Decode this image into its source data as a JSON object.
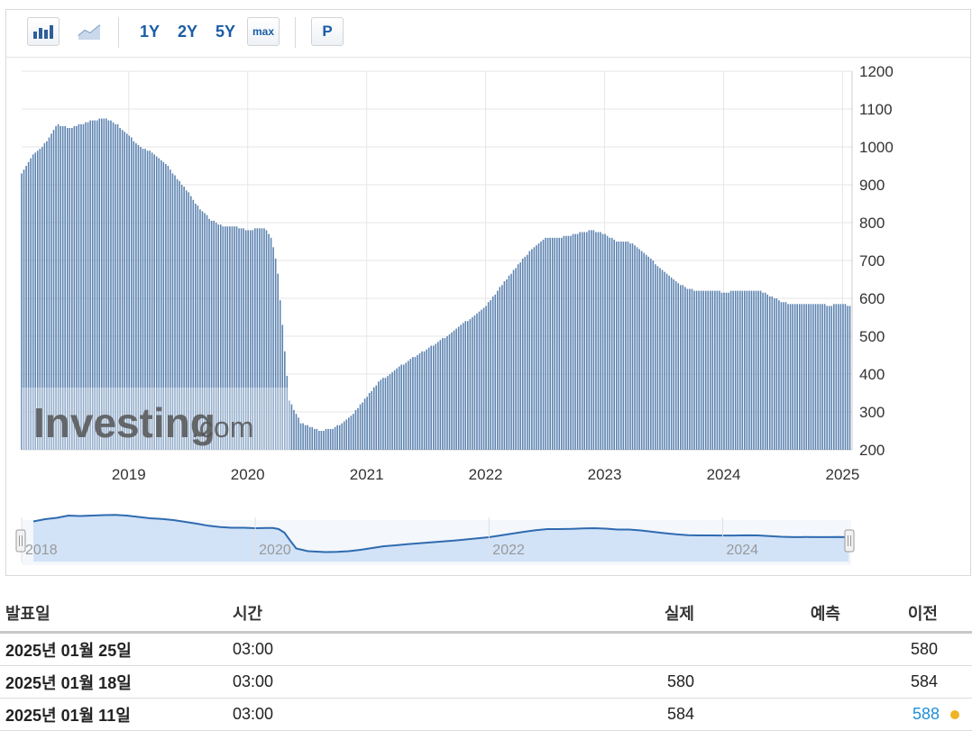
{
  "toolbar": {
    "bar_chart_icon": "bar-chart-icon",
    "line_chart_icon": "line-chart-icon",
    "ranges": [
      "1Y",
      "2Y",
      "5Y"
    ],
    "max_label": "max",
    "p_label": "P"
  },
  "watermark": {
    "brand": "Investing",
    "suffix": ".com"
  },
  "chart_data": {
    "type": "bar",
    "x_ticks": [
      "2019",
      "2020",
      "2021",
      "2022",
      "2023",
      "2024",
      "2025"
    ],
    "y_ticks": [
      "200",
      "300",
      "400",
      "500",
      "600",
      "700",
      "800",
      "900",
      "1000",
      "1100",
      "1200"
    ],
    "ylim": [
      200,
      1200
    ],
    "xlim": [
      2018.1,
      2025.08
    ],
    "grid": true,
    "color": "#5b82b0",
    "points": [
      [
        2018.1,
        930
      ],
      [
        2018.2,
        980
      ],
      [
        2018.3,
        1010
      ],
      [
        2018.4,
        1060
      ],
      [
        2018.5,
        1050
      ],
      [
        2018.6,
        1060
      ],
      [
        2018.7,
        1070
      ],
      [
        2018.8,
        1075
      ],
      [
        2018.9,
        1060
      ],
      [
        2019.0,
        1030
      ],
      [
        2019.1,
        1000
      ],
      [
        2019.2,
        985
      ],
      [
        2019.3,
        960
      ],
      [
        2019.4,
        920
      ],
      [
        2019.5,
        880
      ],
      [
        2019.6,
        835
      ],
      [
        2019.7,
        805
      ],
      [
        2019.8,
        790
      ],
      [
        2019.9,
        790
      ],
      [
        2020.0,
        780
      ],
      [
        2020.1,
        785
      ],
      [
        2020.15,
        785
      ],
      [
        2020.2,
        760
      ],
      [
        2020.25,
        680
      ],
      [
        2020.3,
        500
      ],
      [
        2020.35,
        330
      ],
      [
        2020.45,
        270
      ],
      [
        2020.6,
        250
      ],
      [
        2020.7,
        255
      ],
      [
        2020.8,
        270
      ],
      [
        2020.9,
        300
      ],
      [
        2021.0,
        340
      ],
      [
        2021.1,
        380
      ],
      [
        2021.2,
        400
      ],
      [
        2021.3,
        425
      ],
      [
        2021.4,
        445
      ],
      [
        2021.5,
        465
      ],
      [
        2021.6,
        485
      ],
      [
        2021.7,
        505
      ],
      [
        2021.8,
        530
      ],
      [
        2021.9,
        555
      ],
      [
        2022.0,
        580
      ],
      [
        2022.1,
        620
      ],
      [
        2022.2,
        660
      ],
      [
        2022.3,
        700
      ],
      [
        2022.4,
        735
      ],
      [
        2022.5,
        760
      ],
      [
        2022.6,
        760
      ],
      [
        2022.7,
        765
      ],
      [
        2022.8,
        775
      ],
      [
        2022.9,
        780
      ],
      [
        2023.0,
        770
      ],
      [
        2023.1,
        750
      ],
      [
        2023.2,
        750
      ],
      [
        2023.3,
        730
      ],
      [
        2023.4,
        700
      ],
      [
        2023.5,
        670
      ],
      [
        2023.6,
        645
      ],
      [
        2023.7,
        625
      ],
      [
        2023.8,
        620
      ],
      [
        2023.9,
        620
      ],
      [
        2024.0,
        617
      ],
      [
        2024.1,
        618
      ],
      [
        2024.2,
        622
      ],
      [
        2024.3,
        620
      ],
      [
        2024.4,
        605
      ],
      [
        2024.5,
        590
      ],
      [
        2024.6,
        583
      ],
      [
        2024.7,
        585
      ],
      [
        2024.8,
        583
      ],
      [
        2024.9,
        582
      ],
      [
        2025.0,
        584
      ],
      [
        2025.08,
        580
      ]
    ]
  },
  "navigator": {
    "ticks": [
      "2018",
      "2020",
      "2022",
      "2024"
    ]
  },
  "table": {
    "headers": {
      "date": "발표일",
      "time": "시간",
      "actual": "실제",
      "forecast": "예측",
      "previous": "이전"
    },
    "rows": [
      {
        "date": "2025년 01월 25일",
        "time": "03:00",
        "actual": "",
        "forecast": "",
        "previous": "580"
      },
      {
        "date": "2025년 01월 18일",
        "time": "03:00",
        "actual": "580",
        "forecast": "",
        "previous": "584"
      },
      {
        "date": "2025년 01월 11일",
        "time": "03:00",
        "actual": "584",
        "forecast": "",
        "previous": "588"
      }
    ]
  }
}
